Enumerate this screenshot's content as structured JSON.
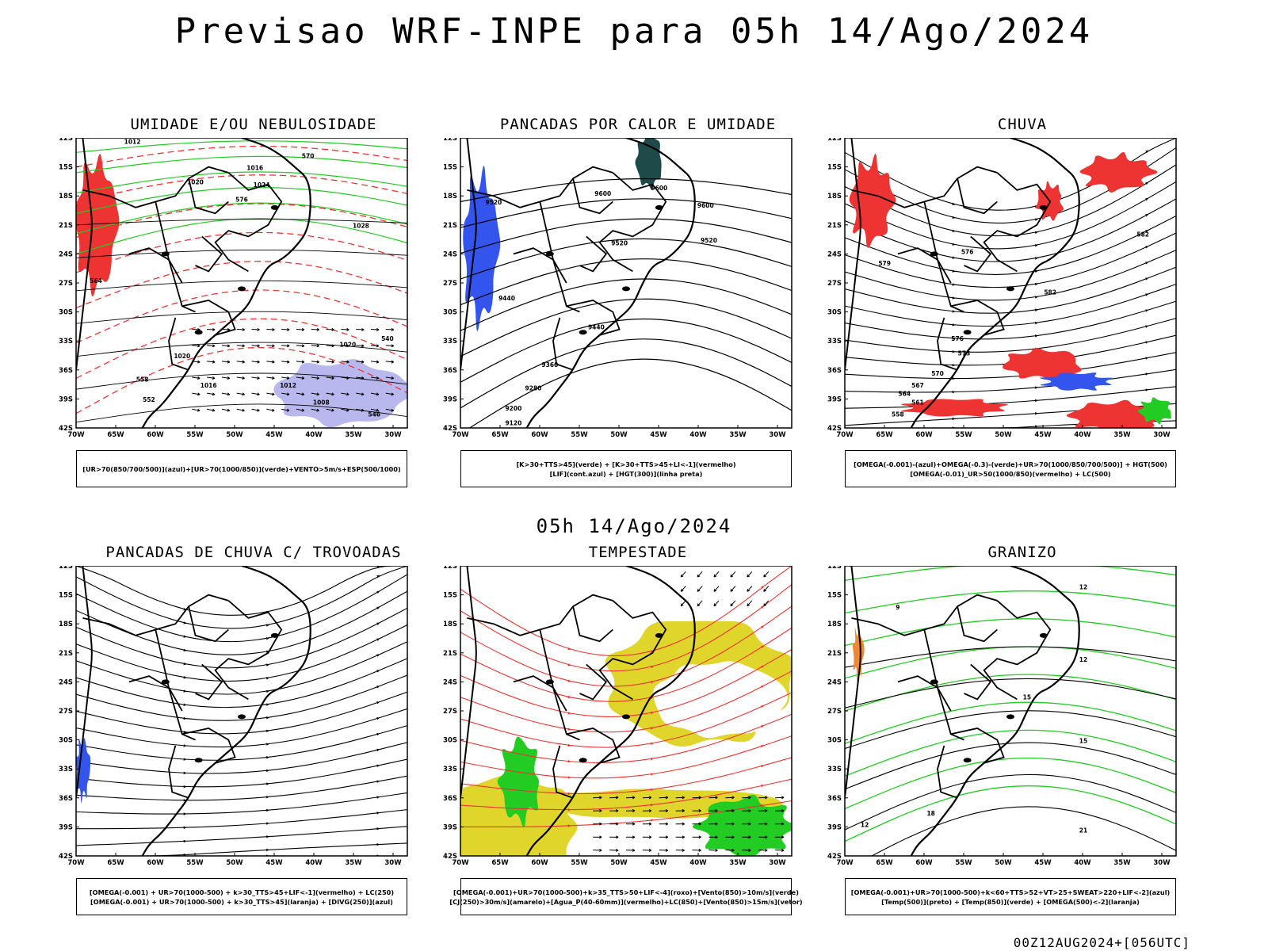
{
  "header": {
    "title": "Previsao WRF-INPE  para 05h 14/Ago/2024"
  },
  "middle": {
    "title": "05h 14/Ago/2024"
  },
  "footer": {
    "stamp": "00Z12AUG2024+[056UTC]"
  },
  "axes": {
    "lat_labels": [
      "12S",
      "15S",
      "18S",
      "21S",
      "24S",
      "27S",
      "30S",
      "33S",
      "36S",
      "39S",
      "42S"
    ],
    "lon_labels": [
      "70W",
      "65W",
      "60W",
      "55W",
      "50W",
      "45W",
      "40W",
      "35W",
      "30W"
    ]
  },
  "colors": {
    "green": "#22cc22",
    "red": "#ee3333",
    "blue": "#3355ee",
    "lavender": "#b8b8ee",
    "yellow": "#e0d52a",
    "darkteal": "#1f4a4a",
    "orange": "#ee8833",
    "black": "#000000"
  },
  "panels": [
    {
      "key": "umidade",
      "title": "UMIDADE E/OU NEBULOSIDADE",
      "legend": [
        "[UR>70(850/700/500)](azul)+[UR>70(1000/850)](verde)+VENTO>5m/s+ESP(500/1000)"
      ],
      "contour_labels": [
        "1012",
        "1016",
        "1020",
        "1024",
        "1028",
        "570",
        "576",
        "564",
        "558",
        "552",
        "546",
        "540",
        "1016",
        "1020",
        "1020",
        "1012",
        "1008"
      ],
      "layers": [
        "green",
        "red",
        "lavender",
        "vectors",
        "black-contours"
      ]
    },
    {
      "key": "pancadas_calor",
      "title": "PANCADAS POR CALOR E UMIDADE",
      "legend": [
        "[K>30+TTS>45](verde) + [K>30+TTS>45+LI<-1](vermelho)",
        "[LIF](cont.azul) + [HGT(300)](linha preta)"
      ],
      "contour_labels": [
        "9600",
        "9600",
        "9520",
        "9520",
        "9520",
        "9440",
        "9440",
        "9360",
        "9280",
        "9200",
        "9120",
        "9600"
      ],
      "layers": [
        "blue",
        "darkteal",
        "black-contours"
      ]
    },
    {
      "key": "chuva",
      "title": "CHUVA",
      "legend": [
        "[OMEGA(-0.001)-(azul)+OMEGA(-0.3)-(verde)+UR>70(1000/850/700/500)] + HGT(500)",
        "[OMEGA(-0.01)_UR>50(1000/850)(vermelho) + LC(500)"
      ],
      "contour_labels": [
        "582",
        "576",
        "579",
        "576",
        "573",
        "570",
        "567",
        "564",
        "561",
        "558",
        "582"
      ],
      "layers": [
        "red",
        "blue",
        "green",
        "streamlines"
      ]
    },
    {
      "key": "trovoadas",
      "title": "PANCADAS DE CHUVA C/ TROVOADAS",
      "legend": [
        "[OMEGA(-0.001) + UR>70(1000-500) + k>30_TTS>45+LIF<-1](vermelho) + LC(250)",
        "[OMEGA(-0.001) + UR>70(1000-500) + k>30_TTS>45](laranja) + [DIVG(250)](azul)"
      ],
      "contour_labels": [],
      "layers": [
        "blue",
        "streamlines"
      ]
    },
    {
      "key": "tempestade",
      "title": "TEMPESTADE",
      "legend": [
        "[OMEGA(-0.001)+UR>70(1000-500)+k>35_TTS>50+LIF<-4](roxo)+[Vento(850)>10m/s](verde)",
        "[CJ(250)>30m/s](amarelo)+[Agua_P(40-60mm)](vermelho)+LC(850)+[Vento(850)>15m/s](vetor)"
      ],
      "contour_labels": [],
      "layers": [
        "yellow",
        "green",
        "red-streamlines",
        "vectors"
      ]
    },
    {
      "key": "granizo",
      "title": "GRANIZO",
      "legend": [
        "[OMEGA(-0.001)+UR>70(1000-500)+k<60+TTS>52+VT>25+SWEAT>220+LIF<-2](azul)",
        "[Temp(500)](preto) + [Temp(850)](verde) + [OMEGA(500)<-2](laranja)"
      ],
      "contour_labels": [
        "15",
        "12",
        "9",
        "12",
        "15",
        "18",
        "21",
        "12"
      ],
      "layers": [
        "green-contours",
        "black-contours",
        "orange"
      ]
    }
  ]
}
